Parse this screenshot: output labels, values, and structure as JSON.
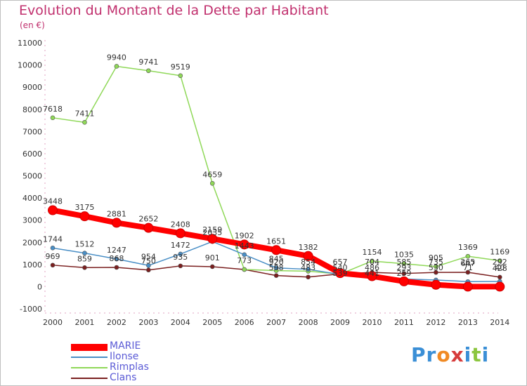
{
  "header": {
    "title": "Evolution du Montant de la Dette par Habitant",
    "subtitle": "(en €)"
  },
  "logo": {
    "text": "Proxiti",
    "colors": [
      "#3b8fd6",
      "#3b8fd6",
      "#f08a24",
      "#d63b3b",
      "#3b8fd6",
      "#8cc63f",
      "#3b8fd6"
    ]
  },
  "chart_data": {
    "type": "line",
    "title": "Evolution du Montant de la Dette par Habitant",
    "subtitle": "(en €)",
    "xlabel": "",
    "ylabel": "",
    "x": [
      "2000",
      "2001",
      "2002",
      "2003",
      "2004",
      "2005",
      "2006",
      "2007",
      "2008",
      "2009",
      "2010",
      "2011",
      "2012",
      "2013",
      "2014"
    ],
    "ylim": [
      -1000,
      11000
    ],
    "yticks": [
      -1000,
      0,
      1000,
      2000,
      3000,
      4000,
      5000,
      6000,
      7000,
      8000,
      9000,
      10000,
      11000
    ],
    "grid": false,
    "legend_position": "bottom-left",
    "series": [
      {
        "name": "MARIE",
        "color": "#ff0000",
        "values": [
          3448,
          3175,
          2881,
          2652,
          2408,
          2159,
          1902,
          1651,
          1382,
          609,
          471,
          239,
          84,
          0,
          0
        ],
        "labels": [
          "3448",
          "3175",
          "2881",
          "2652",
          "2408",
          "2159",
          "1902",
          "1651",
          "1382",
          "",
          "",
          "",
          "",
          "",
          ""
        ]
      },
      {
        "name": "Ilonse",
        "color": "#4a8fc6",
        "values": [
          1744,
          1512,
          1247,
          954,
          1472,
          2035,
          1443,
          845,
          783,
          546,
          431,
          345,
          300,
          227,
          234
        ],
        "labels": [
          "1744",
          "1512",
          "1247",
          "954",
          "1472",
          "2035",
          "1443",
          "845",
          "",
          "",
          "",
          "",
          "",
          "",
          ""
        ]
      },
      {
        "name": "Rimplas",
        "color": "#8fd858",
        "values": [
          7618,
          7411,
          9940,
          9741,
          9519,
          4659,
          775,
          723,
          697,
          567,
          1154,
          1035,
          905,
          1369,
          1169
        ],
        "labels": [
          "7618",
          "7411",
          "9940",
          "9741",
          "9519",
          "4659",
          "",
          "",
          "",
          "",
          "1154",
          "1035",
          "905",
          "1369",
          "1169"
        ]
      },
      {
        "name": "Clans",
        "color": "#7a1f1f",
        "values": [
          969,
          859,
          868,
          750,
          935,
          901,
          773,
          500,
          433,
          577,
          643,
          593,
          641,
          647,
          428
        ],
        "labels": [
          "969",
          "859",
          "868",
          "750",
          "935",
          "901",
          "773",
          "",
          "",
          "",
          "",
          "",
          "",
          "647",
          "428"
        ]
      }
    ],
    "extra_labels": [
      {
        "x": "2007",
        "text": "920"
      },
      {
        "x": "2007",
        "text": "598"
      },
      {
        "x": "2008",
        "text": "854"
      },
      {
        "x": "2008",
        "text": "483"
      },
      {
        "x": "2009",
        "text": "657"
      },
      {
        "x": "2009",
        "text": "540"
      },
      {
        "x": "2009",
        "text": "539"
      },
      {
        "x": "2010",
        "text": "704"
      },
      {
        "x": "2010",
        "text": "486"
      },
      {
        "x": "2010",
        "text": "441"
      },
      {
        "x": "2011",
        "text": "585"
      },
      {
        "x": "2011",
        "text": "293"
      },
      {
        "x": "2011",
        "text": "259"
      },
      {
        "x": "2012",
        "text": "735"
      },
      {
        "x": "2012",
        "text": "530"
      },
      {
        "x": "2013",
        "text": "265"
      },
      {
        "x": "2013",
        "text": "71"
      },
      {
        "x": "2014",
        "text": "292"
      },
      {
        "x": "2014",
        "text": "40"
      }
    ]
  }
}
